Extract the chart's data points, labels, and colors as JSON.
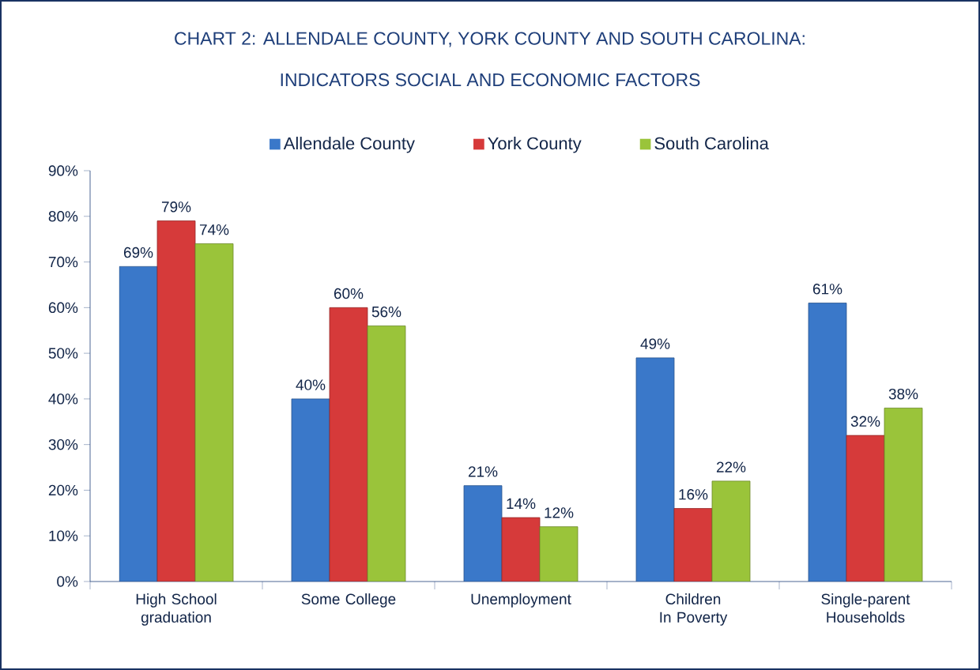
{
  "chart_data": {
    "type": "bar",
    "title": "CHART 2: ALLENDALE COUNTY, YORK COUNTY AND SOUTH CAROLINA:",
    "subtitle": "INDICATORS SOCIAL AND ECONOMIC FACTORS",
    "categories": [
      "High School graduation",
      "Some College",
      "Unemployment",
      "Children In Poverty",
      "Single-parent Households"
    ],
    "series": [
      {
        "name": "Allendale County",
        "color": "#3a78c9",
        "values": [
          69,
          40,
          21,
          49,
          61
        ],
        "value_labels": [
          "69%",
          "40%",
          "21%",
          "49%",
          "61%"
        ]
      },
      {
        "name": "York County",
        "color": "#d63a3a",
        "values": [
          79,
          60,
          14,
          16,
          32
        ],
        "value_labels": [
          "79%",
          "60%",
          "14%",
          "16%",
          "32%"
        ]
      },
      {
        "name": "South Carolina",
        "color": "#9ac43a",
        "values": [
          74,
          56,
          12,
          22,
          38
        ],
        "value_labels": [
          "74%",
          "56%",
          "12%",
          "22%",
          "38%"
        ]
      }
    ],
    "ylim": [
      0,
      90
    ],
    "yticks": [
      {
        "value": 0,
        "label": "0%"
      },
      {
        "value": 10,
        "label": "10%"
      },
      {
        "value": 20,
        "label": "20%"
      },
      {
        "value": 30,
        "label": "30%"
      },
      {
        "value": 40,
        "label": "40%"
      },
      {
        "value": 50,
        "label": "50%"
      },
      {
        "value": 60,
        "label": "60%"
      },
      {
        "value": 70,
        "label": "70%"
      },
      {
        "value": 80,
        "label": "80%"
      },
      {
        "value": 90,
        "label": "90%"
      }
    ],
    "grid": false,
    "legend": "top"
  }
}
